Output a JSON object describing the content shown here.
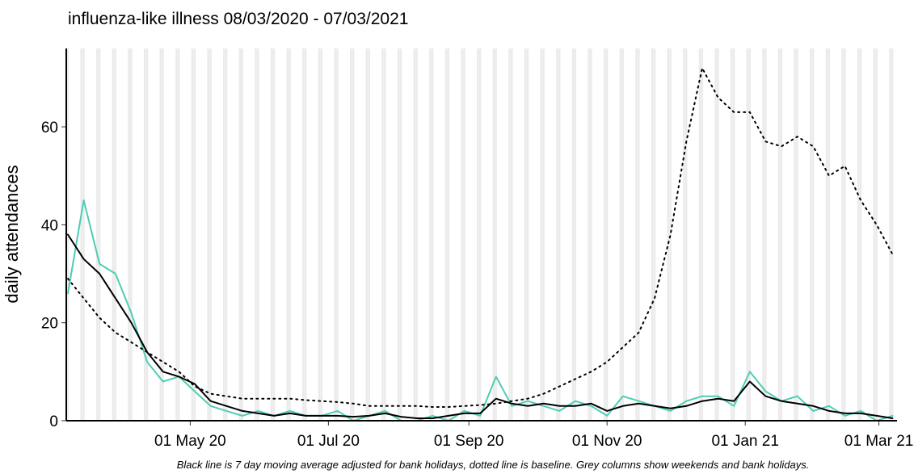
{
  "chart_data": {
    "type": "line",
    "title": "influenza-like illness 08/03/2020 - 07/03/2021",
    "y_label": "daily attendances",
    "caption": "Black line is 7 day moving average adjusted for bank holidays, dotted line is baseline. Grey columns show weekends and bank holidays.",
    "x": [
      "2020-03-08",
      "2020-03-15",
      "2020-03-22",
      "2020-03-29",
      "2020-04-05",
      "2020-04-12",
      "2020-04-19",
      "2020-04-26",
      "2020-05-03",
      "2020-05-10",
      "2020-05-17",
      "2020-05-24",
      "2020-05-31",
      "2020-06-07",
      "2020-06-14",
      "2020-06-21",
      "2020-06-28",
      "2020-07-05",
      "2020-07-12",
      "2020-07-19",
      "2020-07-26",
      "2020-08-02",
      "2020-08-09",
      "2020-08-16",
      "2020-08-23",
      "2020-08-30",
      "2020-09-06",
      "2020-09-13",
      "2020-09-20",
      "2020-09-27",
      "2020-10-04",
      "2020-10-11",
      "2020-10-18",
      "2020-10-25",
      "2020-11-01",
      "2020-11-08",
      "2020-11-15",
      "2020-11-22",
      "2020-11-29",
      "2020-12-06",
      "2020-12-13",
      "2020-12-20",
      "2020-12-27",
      "2021-01-03",
      "2021-01-10",
      "2021-01-17",
      "2021-01-24",
      "2021-01-31",
      "2021-02-07",
      "2021-02-14",
      "2021-02-21",
      "2021-02-28",
      "2021-03-07"
    ],
    "series": [
      {
        "color": "#4ecdb4",
        "linestyle": "solid",
        "width": 2,
        "values": [
          26,
          45,
          32,
          30,
          22,
          12,
          8,
          9,
          6,
          3,
          2,
          1,
          2,
          1,
          2,
          1,
          1,
          2,
          0,
          1,
          2,
          0,
          0,
          1,
          0,
          2,
          1,
          9,
          3,
          4,
          3,
          2,
          4,
          3,
          1,
          5,
          4,
          3,
          2,
          4,
          5,
          5,
          3,
          10,
          6,
          4,
          5,
          2,
          3,
          1,
          2,
          0,
          1
        ]
      },
      {
        "color": "#000000",
        "linestyle": "solid",
        "width": 2,
        "values": [
          38,
          33,
          30,
          25,
          20,
          14,
          10,
          9,
          7.5,
          4,
          3,
          2,
          1.5,
          1,
          1.5,
          1,
          1,
          1,
          0.8,
          1,
          1.5,
          0.8,
          0.5,
          0.5,
          1,
          1.5,
          1.5,
          4.5,
          3.5,
          3,
          3.5,
          3,
          3,
          3.5,
          2,
          3,
          3.5,
          3,
          2.5,
          3,
          4,
          4.5,
          4,
          8,
          5,
          4,
          3.5,
          3,
          2,
          1.5,
          1.5,
          1,
          0.5
        ]
      },
      {
        "color": "#000000",
        "linestyle": "dotted",
        "width": 2,
        "values": [
          29,
          25,
          21,
          18,
          16,
          14,
          12,
          10,
          7,
          5.5,
          5,
          4.5,
          4.5,
          4.5,
          4.5,
          4.2,
          4,
          3.8,
          3.5,
          3,
          3,
          3,
          3,
          2.8,
          2.8,
          3,
          3.2,
          3.5,
          4,
          4.5,
          5.5,
          7,
          8.5,
          10,
          12,
          15,
          18,
          25,
          38,
          57,
          72,
          66,
          63,
          63,
          57,
          56,
          58,
          56,
          50,
          52,
          45,
          40,
          34
        ]
      }
    ],
    "xlim": [
      "2020-03-08",
      "2021-03-09"
    ],
    "xticks": [
      {
        "value": "2020-05-01",
        "label": "01 May 20"
      },
      {
        "value": "2020-07-01",
        "label": "01 Jul 20"
      },
      {
        "value": "2020-09-01",
        "label": "01 Sep 20"
      },
      {
        "value": "2020-11-01",
        "label": "01 Nov 20"
      },
      {
        "value": "2021-01-01",
        "label": "01 Jan 21"
      },
      {
        "value": "2021-03-01",
        "label": "01 Mar 21"
      }
    ],
    "ylim": [
      0,
      76
    ],
    "yticks": [
      0,
      20,
      40,
      60
    ],
    "weekend_shading": true
  }
}
